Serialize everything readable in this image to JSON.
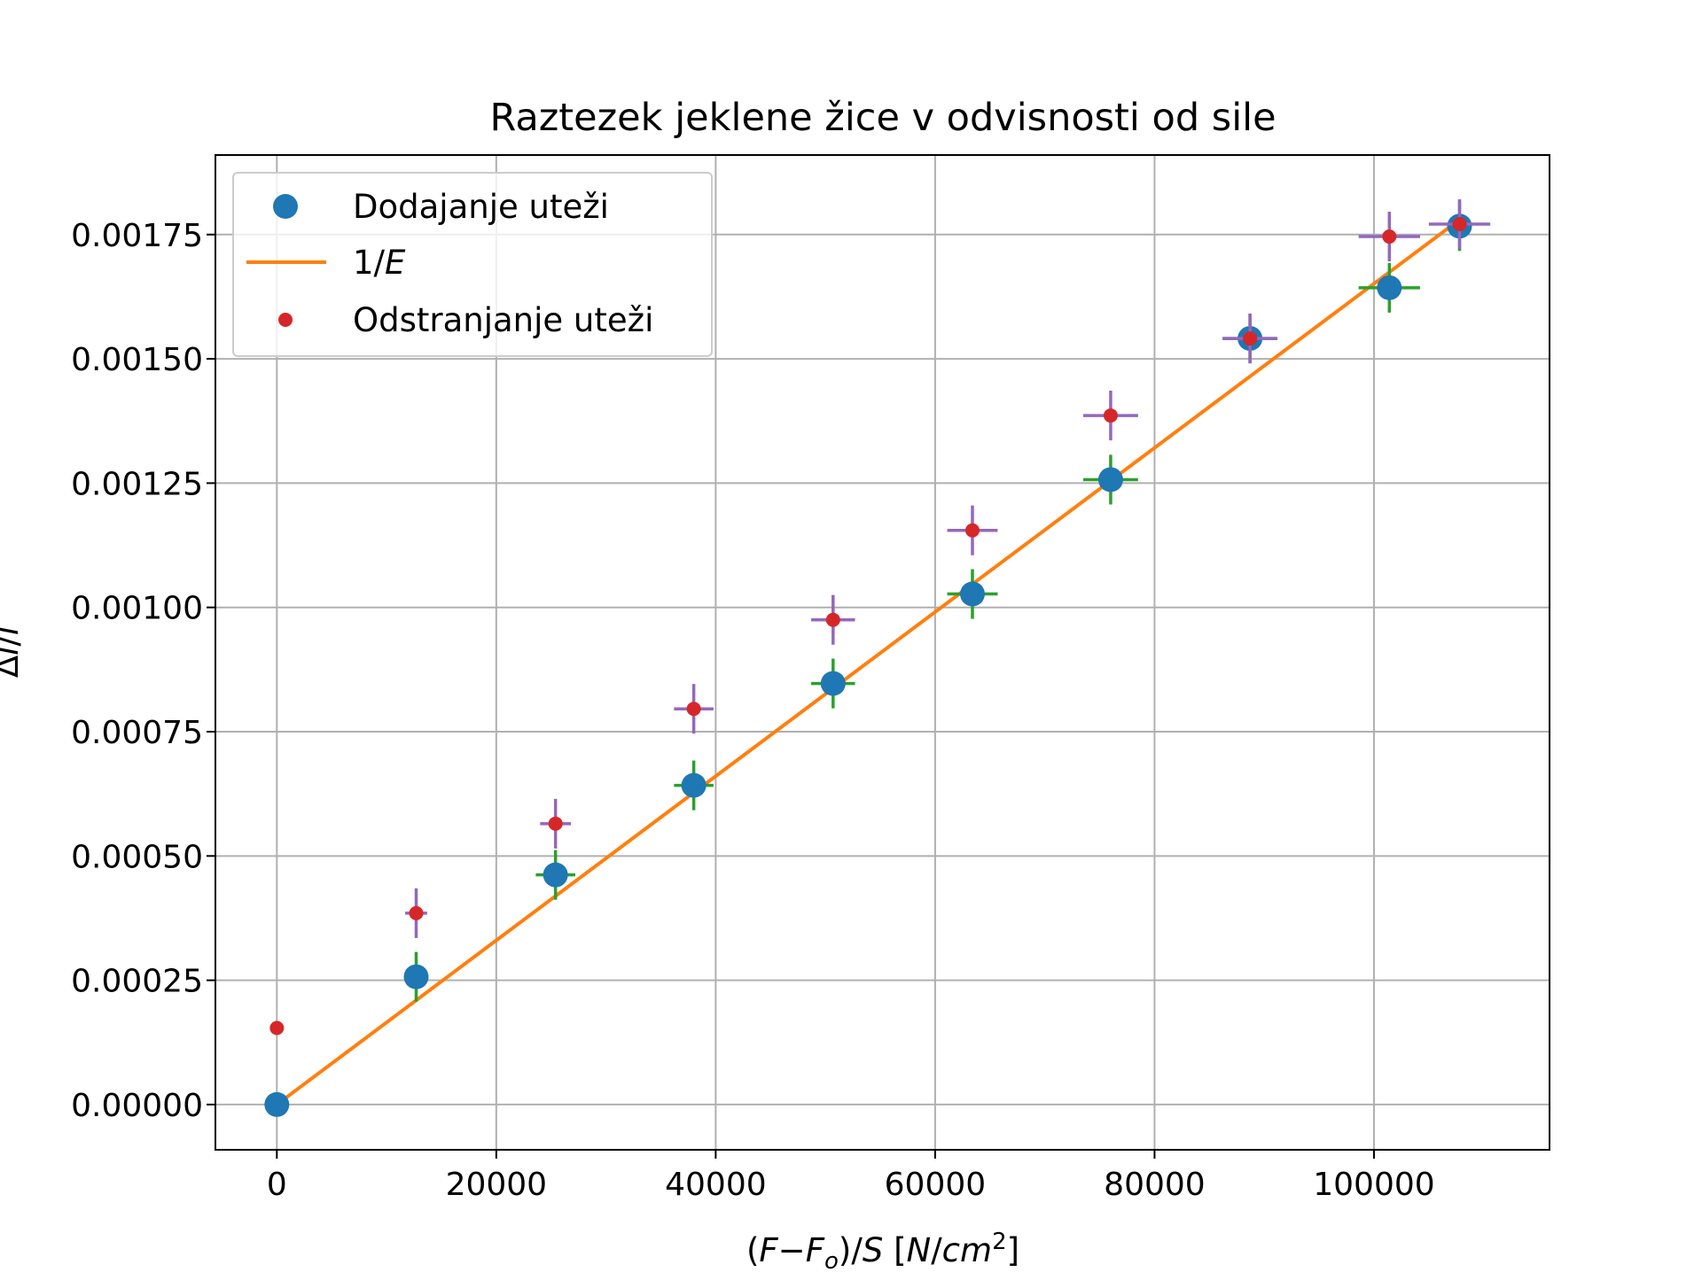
{
  "chart_data": {
    "type": "scatter",
    "title": "Raztezek jeklene žice v odvisnosti od sile",
    "xlabel": {
      "parts": [
        {
          "t": "(",
          "i": false
        },
        {
          "t": "F",
          "i": true
        },
        {
          "t": "−",
          "i": false
        },
        {
          "t": "F",
          "i": true
        },
        {
          "t": "o",
          "i": true,
          "sub": true
        },
        {
          "t": ")/",
          "i": false
        },
        {
          "t": "S",
          "i": true
        },
        {
          "t": " [",
          "i": false
        },
        {
          "t": "N",
          "i": true
        },
        {
          "t": "/",
          "i": false
        },
        {
          "t": "cm",
          "i": true
        },
        {
          "t": "2",
          "i": false,
          "sup": true
        },
        {
          "t": "]",
          "i": false
        }
      ]
    },
    "ylabel": {
      "parts": [
        {
          "t": "Δ",
          "i": false
        },
        {
          "t": "l",
          "i": true
        },
        {
          "t": "/",
          "i": false
        },
        {
          "t": "l",
          "i": true
        }
      ]
    },
    "xlim": [
      -5600,
      116000
    ],
    "ylim": [
      -9.1e-05,
      0.00191
    ],
    "x_ticks": [
      0,
      20000,
      40000,
      60000,
      80000,
      100000
    ],
    "x_tick_labels": [
      "0",
      "20000",
      "40000",
      "60000",
      "80000",
      "100000"
    ],
    "y_ticks": [
      0,
      0.00025,
      0.0005,
      0.00075,
      0.001,
      0.00125,
      0.0015,
      0.00175
    ],
    "y_tick_labels": [
      "0.00000",
      "0.00025",
      "0.00050",
      "0.00075",
      "0.00100",
      "0.00125",
      "0.00150",
      "0.00175"
    ],
    "grid": true,
    "legend_position": "top-left",
    "series": [
      {
        "name": "Dodajanje uteži",
        "kind": "scatter-large",
        "color": "#1f77b4",
        "errorbar_color": "#2ca02c",
        "x": [
          0,
          12700,
          25400,
          38000,
          50700,
          63400,
          76000,
          88700,
          101400,
          107800
        ],
        "y": [
          0,
          0.000257,
          0.000462,
          0.000642,
          0.000847,
          0.001027,
          0.001257,
          0.001541,
          0.001643,
          0.001767
        ],
        "xerr": [
          0,
          0,
          1800,
          1800,
          2000,
          2300,
          2500,
          2500,
          2800,
          0
        ],
        "yerr": [
          0,
          5e-05,
          5e-05,
          5e-05,
          5e-05,
          5e-05,
          5e-05,
          5e-05,
          5e-05,
          5e-05
        ]
      },
      {
        "name": "1/E",
        "label_parts": [
          {
            "t": "1/",
            "i": false
          },
          {
            "t": "E",
            "i": true
          }
        ],
        "kind": "line",
        "color": "#ff7f0e",
        "x": [
          0,
          107800
        ],
        "y": [
          0,
          0.00178
        ]
      },
      {
        "name": "Odstranjanje uteži",
        "kind": "scatter-small",
        "color": "#d62728",
        "errorbar_color": "#9467bd",
        "x": [
          0,
          12700,
          25400,
          38000,
          50700,
          63400,
          76000,
          88700,
          101400,
          107800
        ],
        "y": [
          0.000154,
          0.000385,
          0.000565,
          0.000796,
          0.000975,
          0.001155,
          0.001386,
          0.001541,
          0.001746,
          0.001771
        ],
        "xerr": [
          0,
          1000,
          1400,
          1800,
          2000,
          2300,
          2500,
          2500,
          2800,
          2800
        ],
        "yerr": [
          0,
          5e-05,
          5e-05,
          5e-05,
          5e-05,
          5e-05,
          5e-05,
          5e-05,
          5e-05,
          5e-05
        ]
      }
    ]
  }
}
